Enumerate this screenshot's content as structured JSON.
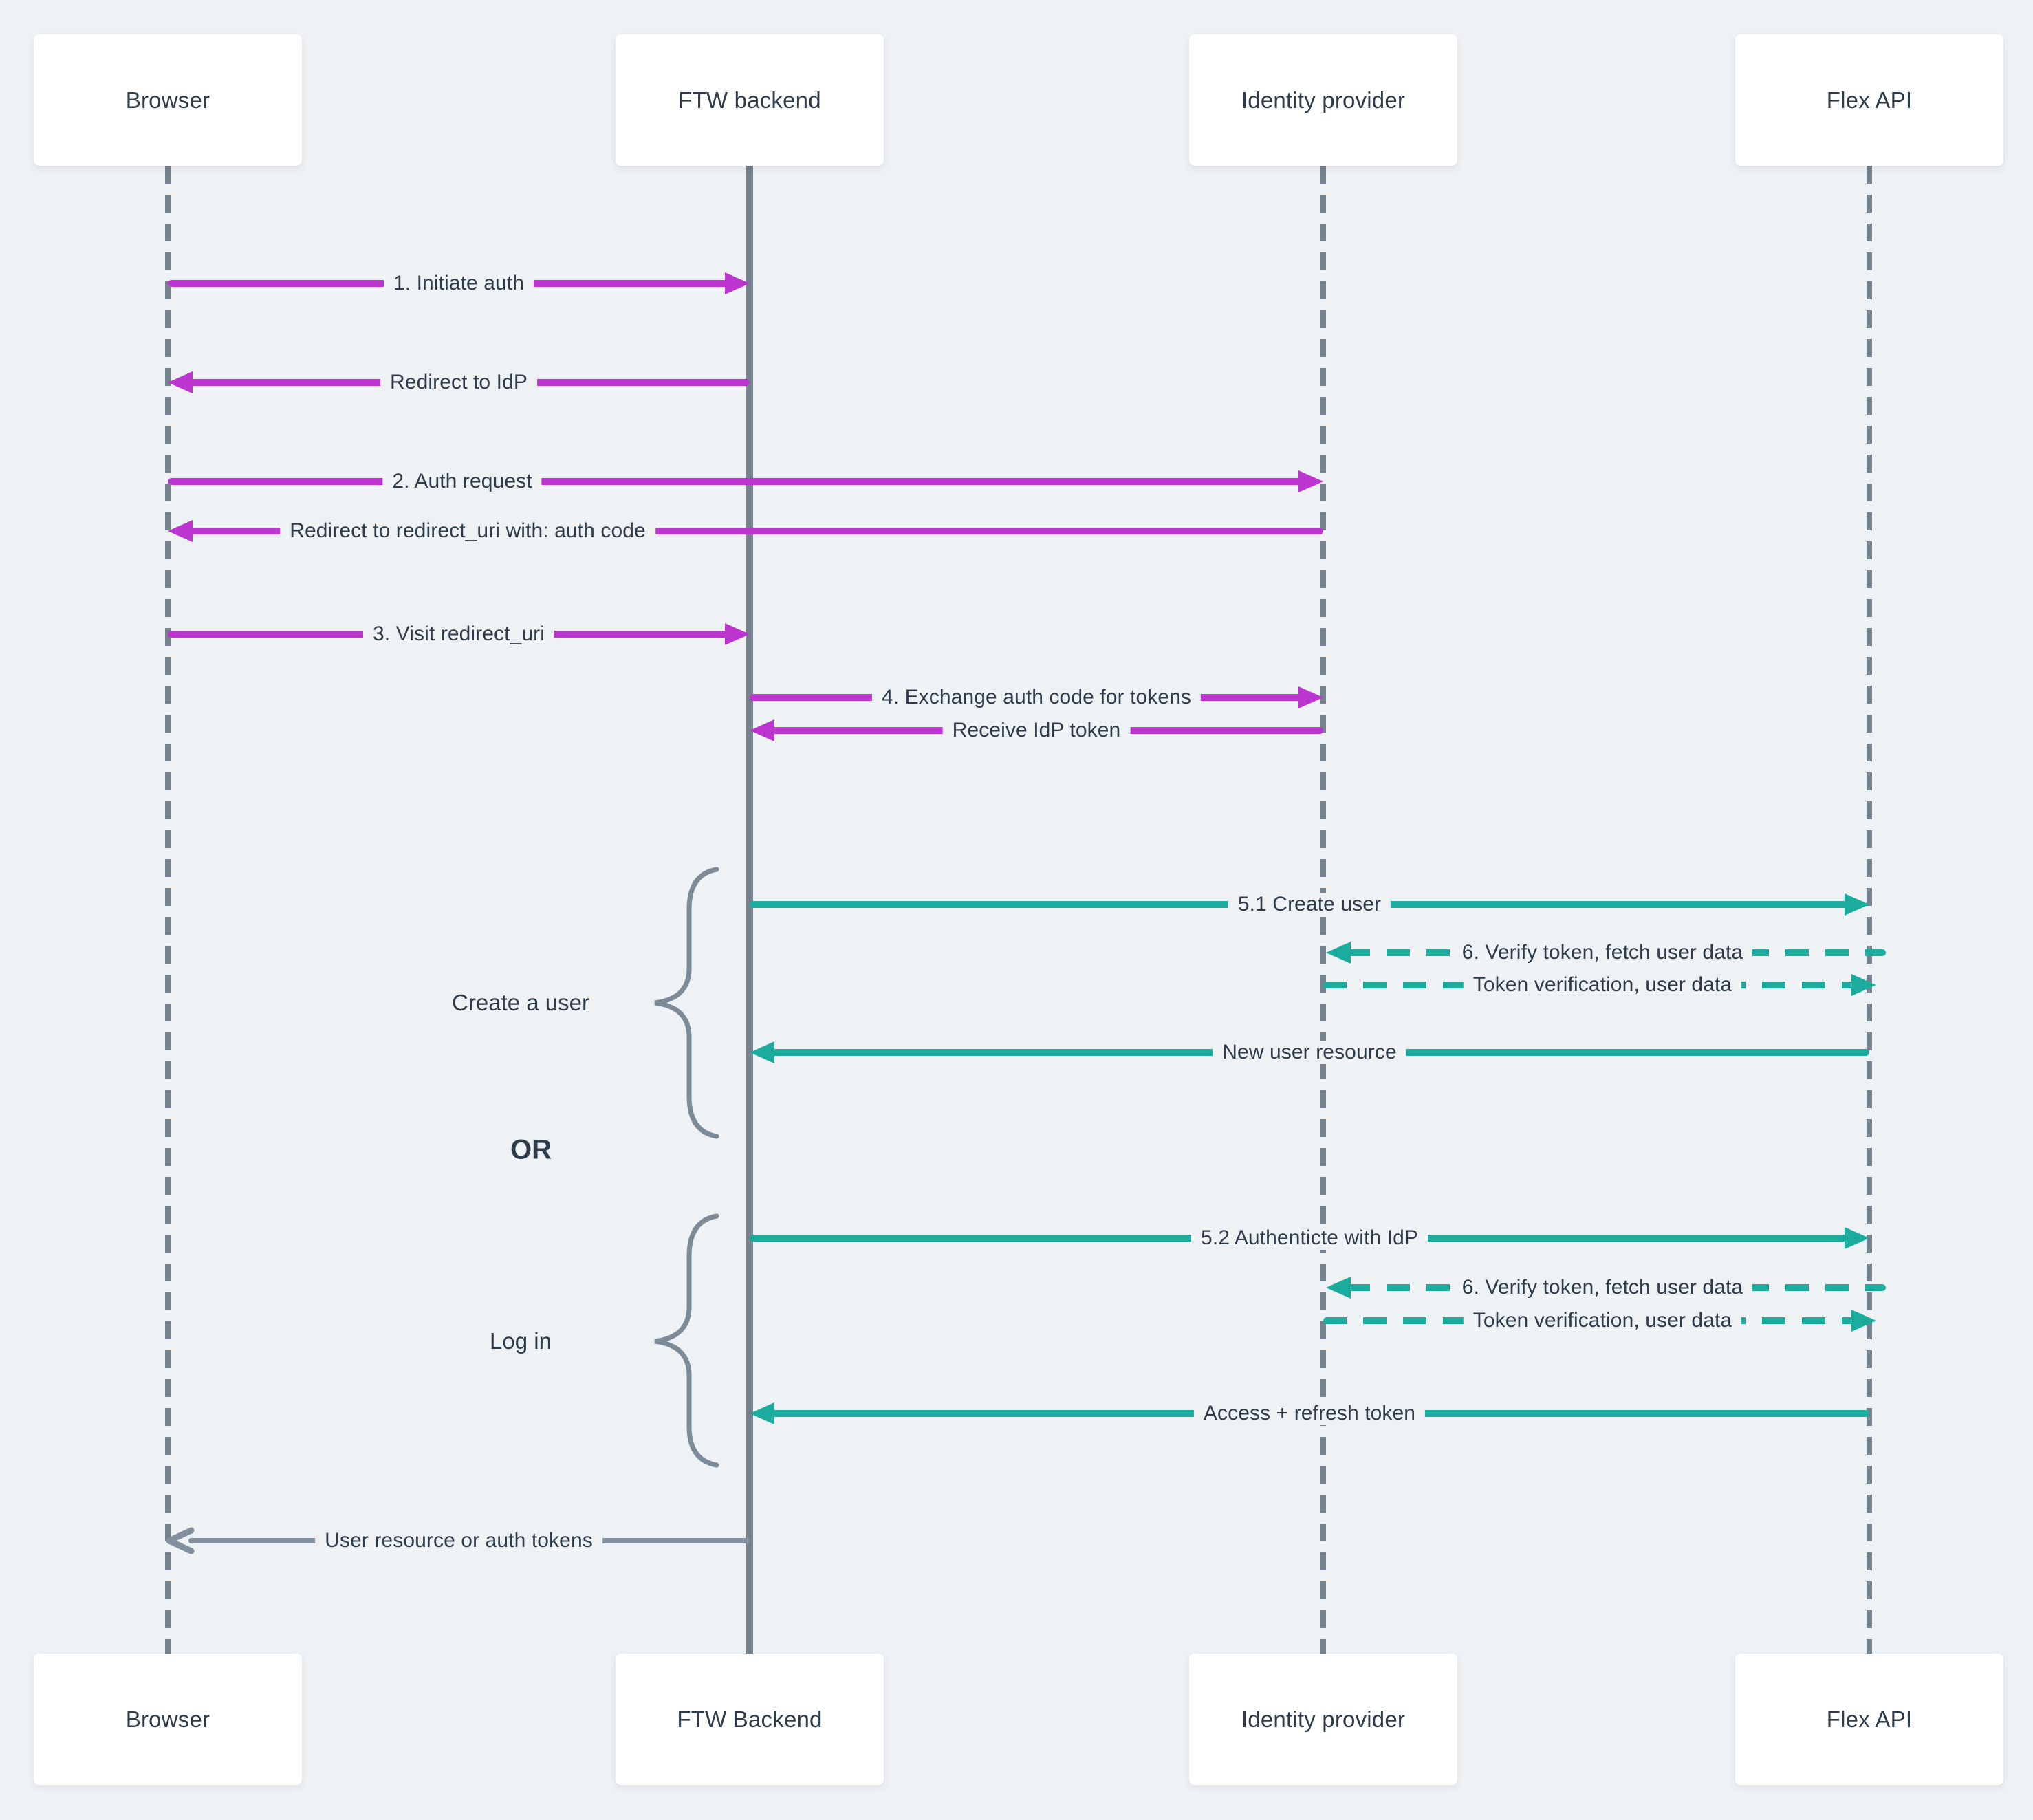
{
  "diagram_type": "sequence-diagram",
  "colors": {
    "background": "#EFF2F5",
    "box_background": "#FFFFFF",
    "text": "#2E3B4A",
    "magenta_arrow": "#BB35CE",
    "teal_arrow": "#1CAC9E",
    "gray_arrow": "#82909D",
    "lifeline_gray": "#75828F",
    "brace_gray": "#7D8A97"
  },
  "participants": [
    {
      "id": "browser",
      "top_label": "Browser",
      "bottom_label": "Browser",
      "lifeline": "dashed"
    },
    {
      "id": "ftw-backend",
      "top_label": "FTW backend",
      "bottom_label": "FTW Backend",
      "lifeline": "solid"
    },
    {
      "id": "identity-provider",
      "top_label": "Identity provider",
      "bottom_label": "Identity provider",
      "lifeline": "dashed"
    },
    {
      "id": "flex-api",
      "top_label": "Flex API",
      "bottom_label": "Flex API",
      "lifeline": "dashed"
    }
  ],
  "messages": [
    {
      "label": "1. Initiate auth",
      "from": "browser",
      "to": "ftw-backend",
      "color": "magenta",
      "dashed": false
    },
    {
      "label": "Redirect to IdP",
      "from": "ftw-backend",
      "to": "browser",
      "color": "magenta",
      "dashed": false
    },
    {
      "label": "2. Auth request",
      "from": "browser",
      "to": "identity-provider",
      "color": "magenta",
      "dashed": false
    },
    {
      "label": "Redirect to redirect_uri with: auth code",
      "from": "identity-provider",
      "to": "browser",
      "color": "magenta",
      "dashed": false
    },
    {
      "label": "3. Visit redirect_uri",
      "from": "browser",
      "to": "ftw-backend",
      "color": "magenta",
      "dashed": false
    },
    {
      "label": "4. Exchange auth code for tokens",
      "from": "ftw-backend",
      "to": "identity-provider",
      "color": "magenta",
      "dashed": false
    },
    {
      "label": "Receive IdP token",
      "from": "identity-provider",
      "to": "ftw-backend",
      "color": "magenta",
      "dashed": false
    },
    {
      "label": "5.1 Create user",
      "from": "ftw-backend",
      "to": "flex-api",
      "color": "teal",
      "dashed": false
    },
    {
      "label": "6. Verify token, fetch user data",
      "from": "flex-api",
      "to": "identity-provider",
      "color": "teal",
      "dashed": true
    },
    {
      "label": "Token verification, user data",
      "from": "identity-provider",
      "to": "flex-api",
      "color": "teal",
      "dashed": true
    },
    {
      "label": "New user resource",
      "from": "flex-api",
      "to": "ftw-backend",
      "color": "teal",
      "dashed": false
    },
    {
      "label": "5.2 Authenticte with IdP",
      "from": "ftw-backend",
      "to": "flex-api",
      "color": "teal",
      "dashed": false
    },
    {
      "label": "6. Verify token, fetch user data",
      "from": "flex-api",
      "to": "identity-provider",
      "color": "teal",
      "dashed": true
    },
    {
      "label": "Token verification, user data",
      "from": "identity-provider",
      "to": "flex-api",
      "color": "teal",
      "dashed": true
    },
    {
      "label": "Access + refresh token",
      "from": "flex-api",
      "to": "ftw-backend",
      "color": "teal",
      "dashed": false
    },
    {
      "label": "User resource or auth tokens",
      "from": "ftw-backend",
      "to": "browser",
      "color": "gray",
      "dashed": false
    }
  ],
  "annotations": {
    "create_user_label": "Create a user",
    "or_label": "OR",
    "log_in_label": "Log in"
  }
}
